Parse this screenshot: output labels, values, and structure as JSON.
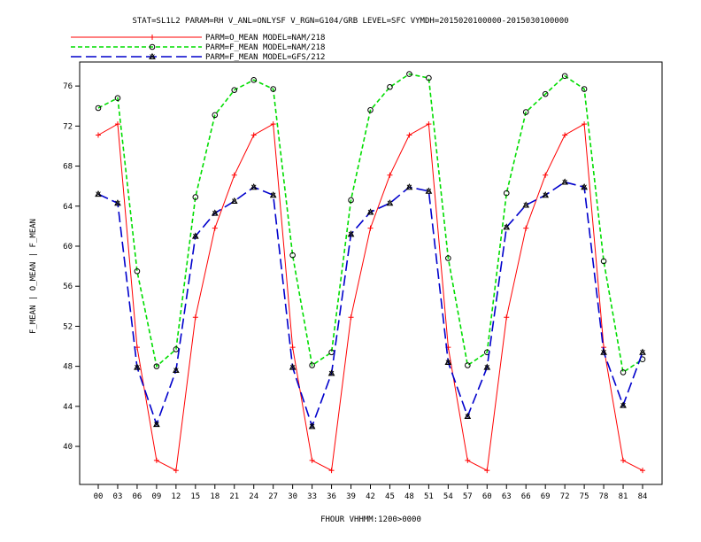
{
  "chart_data": {
    "type": "line",
    "title": "STAT=SL1L2 PARAM=RH V_ANL=ONLYSF V_RGN=G104/GRB LEVEL=SFC VYMDH=2015020100000-2015030100000",
    "xlabel": "FHOUR VHHMM:1200>0000",
    "ylabel": "F_MEAN | O_MEAN | F_MEAN",
    "x": [
      "00",
      "03",
      "06",
      "09",
      "12",
      "15",
      "18",
      "21",
      "24",
      "27",
      "30",
      "33",
      "36",
      "39",
      "42",
      "45",
      "48",
      "51",
      "54",
      "57",
      "60",
      "63",
      "66",
      "69",
      "72",
      "75",
      "78",
      "81",
      "84"
    ],
    "yticks": [
      40,
      44,
      48,
      52,
      56,
      60,
      64,
      68,
      72,
      76
    ],
    "ylim": [
      36.2,
      78.4
    ],
    "grid": false,
    "legend_position": "top-left",
    "series": [
      {
        "name": "PARM=O_MEAN MODEL=NAM/218",
        "color": "#ff0000",
        "dash": "solid",
        "marker": "plus",
        "values": [
          71.1,
          72.2,
          49.9,
          38.6,
          37.6,
          52.9,
          61.8,
          67.1,
          71.1,
          72.2,
          49.9,
          38.6,
          37.6,
          52.9,
          61.8,
          67.1,
          71.1,
          72.2,
          49.9,
          38.6,
          37.6,
          52.9,
          61.8,
          67.1,
          71.1,
          72.2,
          49.9,
          38.6,
          37.6
        ]
      },
      {
        "name": "PARM=F_MEAN MODEL=NAM/218",
        "color": "#00dd00",
        "dash": "dashed",
        "marker": "circle",
        "values": [
          73.8,
          74.8,
          57.5,
          48.0,
          49.7,
          64.9,
          73.1,
          75.6,
          76.6,
          75.7,
          59.1,
          48.1,
          49.4,
          64.6,
          73.6,
          75.9,
          77.2,
          76.8,
          58.8,
          48.1,
          49.4,
          65.3,
          73.4,
          75.2,
          77.0,
          75.7,
          58.5,
          47.4,
          48.7
        ]
      },
      {
        "name": "PARM=F_MEAN MODEL=GFS/212",
        "color": "#0000cc",
        "dash": "dashed",
        "marker": "triangle",
        "values": [
          65.2,
          64.3,
          47.9,
          42.2,
          47.6,
          61.0,
          63.3,
          64.5,
          65.9,
          65.1,
          47.9,
          42.0,
          47.3,
          61.2,
          63.4,
          64.3,
          65.9,
          65.5,
          48.4,
          43.0,
          47.9,
          61.9,
          64.1,
          65.1,
          66.4,
          65.9,
          49.4,
          44.1,
          49.4
        ]
      }
    ]
  }
}
